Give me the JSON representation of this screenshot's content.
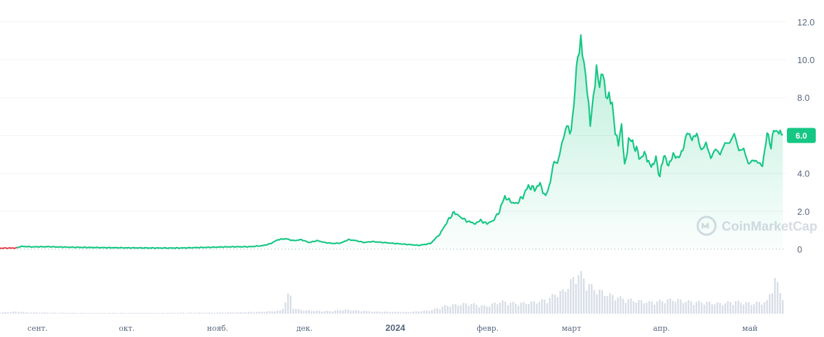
{
  "chart_data": {
    "type": "area",
    "y_ticks": [
      "0",
      "2.0",
      "4.0",
      "6.0",
      "8.0",
      "10.0",
      "12.0"
    ],
    "ylim": [
      0,
      12.6
    ],
    "x_ticks": [
      {
        "label": "сент.",
        "t": 0.048,
        "bold": false
      },
      {
        "label": "окт.",
        "t": 0.162,
        "bold": false
      },
      {
        "label": "нояб.",
        "t": 0.278,
        "bold": false
      },
      {
        "label": "дек.",
        "t": 0.389,
        "bold": false
      },
      {
        "label": "2024",
        "t": 0.505,
        "bold": true
      },
      {
        "label": "февр.",
        "t": 0.623,
        "bold": false
      },
      {
        "label": "март",
        "t": 0.73,
        "bold": false
      },
      {
        "label": "апр.",
        "t": 0.845,
        "bold": false
      },
      {
        "label": "май",
        "t": 0.958,
        "bold": false
      }
    ],
    "current_price": "6.0",
    "line_color": "#16c784",
    "pre_line_color": "#ea3943",
    "price_points": [
      [
        0.0,
        0.05
      ],
      [
        0.02,
        0.06
      ],
      [
        0.028,
        0.15
      ],
      [
        0.04,
        0.12
      ],
      [
        0.06,
        0.13
      ],
      [
        0.09,
        0.1
      ],
      [
        0.13,
        0.08
      ],
      [
        0.16,
        0.07
      ],
      [
        0.2,
        0.06
      ],
      [
        0.23,
        0.06
      ],
      [
        0.26,
        0.09
      ],
      [
        0.29,
        0.12
      ],
      [
        0.32,
        0.13
      ],
      [
        0.335,
        0.18
      ],
      [
        0.345,
        0.28
      ],
      [
        0.355,
        0.5
      ],
      [
        0.365,
        0.55
      ],
      [
        0.375,
        0.45
      ],
      [
        0.385,
        0.5
      ],
      [
        0.395,
        0.35
      ],
      [
        0.405,
        0.45
      ],
      [
        0.415,
        0.35
      ],
      [
        0.425,
        0.3
      ],
      [
        0.435,
        0.32
      ],
      [
        0.445,
        0.5
      ],
      [
        0.455,
        0.45
      ],
      [
        0.465,
        0.35
      ],
      [
        0.475,
        0.4
      ],
      [
        0.49,
        0.35
      ],
      [
        0.505,
        0.3
      ],
      [
        0.52,
        0.25
      ],
      [
        0.535,
        0.2
      ],
      [
        0.55,
        0.3
      ],
      [
        0.562,
        0.8
      ],
      [
        0.572,
        1.5
      ],
      [
        0.58,
        1.95
      ],
      [
        0.588,
        1.7
      ],
      [
        0.596,
        1.5
      ],
      [
        0.605,
        1.35
      ],
      [
        0.614,
        1.5
      ],
      [
        0.622,
        1.35
      ],
      [
        0.63,
        1.5
      ],
      [
        0.638,
        2.0
      ],
      [
        0.645,
        2.8
      ],
      [
        0.652,
        2.5
      ],
      [
        0.66,
        2.4
      ],
      [
        0.668,
        2.8
      ],
      [
        0.675,
        3.3
      ],
      [
        0.683,
        3.2
      ],
      [
        0.69,
        3.4
      ],
      [
        0.697,
        2.8
      ],
      [
        0.703,
        3.5
      ],
      [
        0.708,
        4.8
      ],
      [
        0.712,
        4.5
      ],
      [
        0.718,
        5.6
      ],
      [
        0.724,
        6.5
      ],
      [
        0.728,
        6.0
      ],
      [
        0.733,
        7.5
      ],
      [
        0.738,
        10.3
      ],
      [
        0.742,
        11.3
      ],
      [
        0.746,
        10.0
      ],
      [
        0.75,
        8.5
      ],
      [
        0.754,
        6.5
      ],
      [
        0.758,
        7.8
      ],
      [
        0.762,
        9.3
      ],
      [
        0.766,
        8.5
      ],
      [
        0.77,
        9.5
      ],
      [
        0.774,
        8.2
      ],
      [
        0.778,
        8.3
      ],
      [
        0.782,
        7.8
      ],
      [
        0.786,
        6.2
      ],
      [
        0.79,
        5.5
      ],
      [
        0.794,
        6.4
      ],
      [
        0.798,
        4.3
      ],
      [
        0.803,
        5.8
      ],
      [
        0.81,
        5.5
      ],
      [
        0.818,
        4.8
      ],
      [
        0.825,
        5.0
      ],
      [
        0.832,
        4.3
      ],
      [
        0.838,
        4.8
      ],
      [
        0.843,
        3.8
      ],
      [
        0.848,
        5.0
      ],
      [
        0.854,
        4.4
      ],
      [
        0.86,
        5.0
      ],
      [
        0.866,
        4.8
      ],
      [
        0.872,
        5.2
      ],
      [
        0.878,
        6.2
      ],
      [
        0.884,
        5.8
      ],
      [
        0.89,
        6.1
      ],
      [
        0.896,
        5.2
      ],
      [
        0.902,
        5.6
      ],
      [
        0.908,
        4.8
      ],
      [
        0.914,
        5.3
      ],
      [
        0.92,
        5.0
      ],
      [
        0.926,
        5.6
      ],
      [
        0.932,
        5.6
      ],
      [
        0.938,
        6.1
      ],
      [
        0.944,
        5.2
      ],
      [
        0.95,
        5.3
      ],
      [
        0.956,
        4.5
      ],
      [
        0.962,
        4.7
      ],
      [
        0.968,
        4.6
      ],
      [
        0.974,
        4.4
      ],
      [
        0.98,
        6.1
      ],
      [
        0.985,
        5.5
      ],
      [
        0.99,
        6.4
      ],
      [
        0.995,
        6.1
      ],
      [
        1.0,
        6.05
      ]
    ],
    "volume_points": [
      [
        0.0,
        0.03
      ],
      [
        0.02,
        0.05
      ],
      [
        0.04,
        0.03
      ],
      [
        0.1,
        0.02
      ],
      [
        0.2,
        0.02
      ],
      [
        0.3,
        0.03
      ],
      [
        0.34,
        0.05
      ],
      [
        0.36,
        0.08
      ],
      [
        0.37,
        0.55
      ],
      [
        0.375,
        0.12
      ],
      [
        0.39,
        0.08
      ],
      [
        0.42,
        0.06
      ],
      [
        0.44,
        0.1
      ],
      [
        0.48,
        0.05
      ],
      [
        0.52,
        0.04
      ],
      [
        0.55,
        0.08
      ],
      [
        0.57,
        0.2
      ],
      [
        0.6,
        0.25
      ],
      [
        0.62,
        0.18
      ],
      [
        0.64,
        0.3
      ],
      [
        0.66,
        0.25
      ],
      [
        0.68,
        0.28
      ],
      [
        0.7,
        0.35
      ],
      [
        0.71,
        0.5
      ],
      [
        0.72,
        0.55
      ],
      [
        0.73,
        0.8
      ],
      [
        0.74,
        1.0
      ],
      [
        0.75,
        0.75
      ],
      [
        0.76,
        0.6
      ],
      [
        0.78,
        0.45
      ],
      [
        0.8,
        0.35
      ],
      [
        0.83,
        0.28
      ],
      [
        0.86,
        0.35
      ],
      [
        0.88,
        0.3
      ],
      [
        0.9,
        0.28
      ],
      [
        0.92,
        0.25
      ],
      [
        0.94,
        0.3
      ],
      [
        0.96,
        0.25
      ],
      [
        0.98,
        0.3
      ],
      [
        0.99,
        0.85
      ],
      [
        1.0,
        0.4
      ]
    ]
  },
  "watermark": {
    "brand": "CoinMarketCap",
    "icon": "coinmarketcap-logo-icon"
  }
}
